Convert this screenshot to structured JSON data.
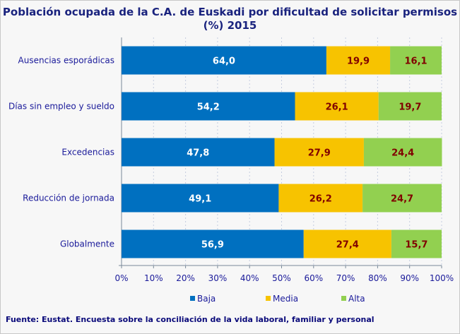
{
  "chart_data": {
    "type": "bar",
    "orientation": "horizontal",
    "stacked": true,
    "title": "Población ocupada de la C.A. de Euskadi por dificultad de solicitar permisos (%) 2015",
    "categories": [
      "Ausencias esporádicas",
      "Días sin empleo y sueldo",
      "Excedencias",
      "Reducción de jornada",
      "Globalmente"
    ],
    "series": [
      {
        "name": "Baja",
        "color": "#0070c0",
        "label_color": "#ffffff",
        "values": [
          64.0,
          54.2,
          47.8,
          49.1,
          56.9
        ]
      },
      {
        "name": "Media",
        "color": "#f7c300",
        "label_color": "#800000",
        "values": [
          19.9,
          26.1,
          27.9,
          26.2,
          27.4
        ]
      },
      {
        "name": "Alta",
        "color": "#92d050",
        "label_color": "#800000",
        "values": [
          16.1,
          19.7,
          24.4,
          24.7,
          15.7
        ]
      }
    ],
    "data_labels": [
      [
        "64,0",
        "54,2",
        "47,8",
        "49,1",
        "56,9"
      ],
      [
        "19,9",
        "26,1",
        "27,9",
        "26,2",
        "27,4"
      ],
      [
        "16,1",
        "19,7",
        "24,4",
        "24,7",
        "15,7"
      ]
    ],
    "xlim": [
      0,
      100
    ],
    "xticks": [
      "0%",
      "10%",
      "20%",
      "30%",
      "40%",
      "50%",
      "60%",
      "70%",
      "80%",
      "90%",
      "100%"
    ],
    "grid": true,
    "legend": "bottom"
  },
  "source": "Fuente: Eustat. Encuesta sobre la conciliación de la vida laboral, familiar y personal"
}
